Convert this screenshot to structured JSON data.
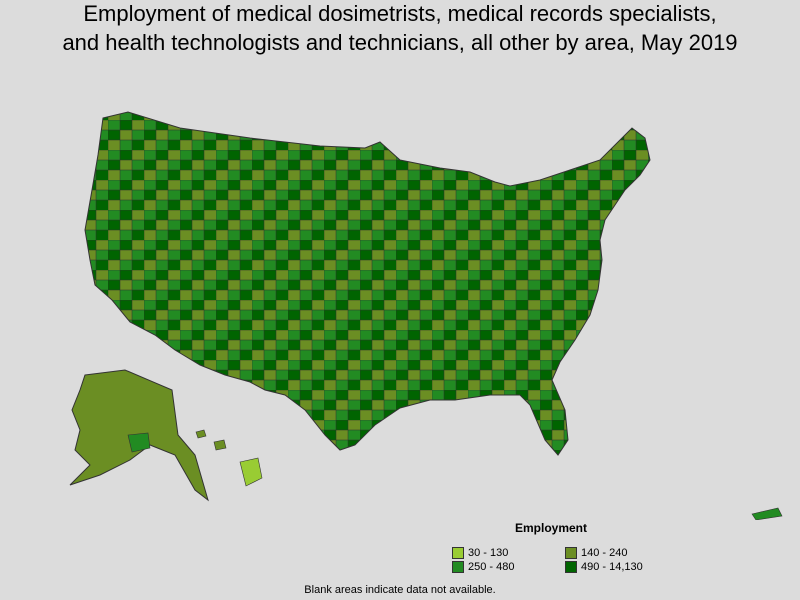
{
  "title_line_1": "Employment of medical dosimetrists, medical records specialists,",
  "title_line_2": "and health technologists and technicians, all other by area, May 2019",
  "legend": {
    "title": "Employment",
    "items": [
      {
        "label": "30 - 130",
        "color": "#99cc33"
      },
      {
        "label": "140 - 240",
        "color": "#6b8e23"
      },
      {
        "label": "250 - 480",
        "color": "#228b22"
      },
      {
        "label": "490 - 14,130",
        "color": "#006400"
      }
    ]
  },
  "footnote": "Blank areas indicate data not available.",
  "colors": {
    "background": "#dcdcdc",
    "blank": "#ffffff",
    "border": "#333333"
  }
}
